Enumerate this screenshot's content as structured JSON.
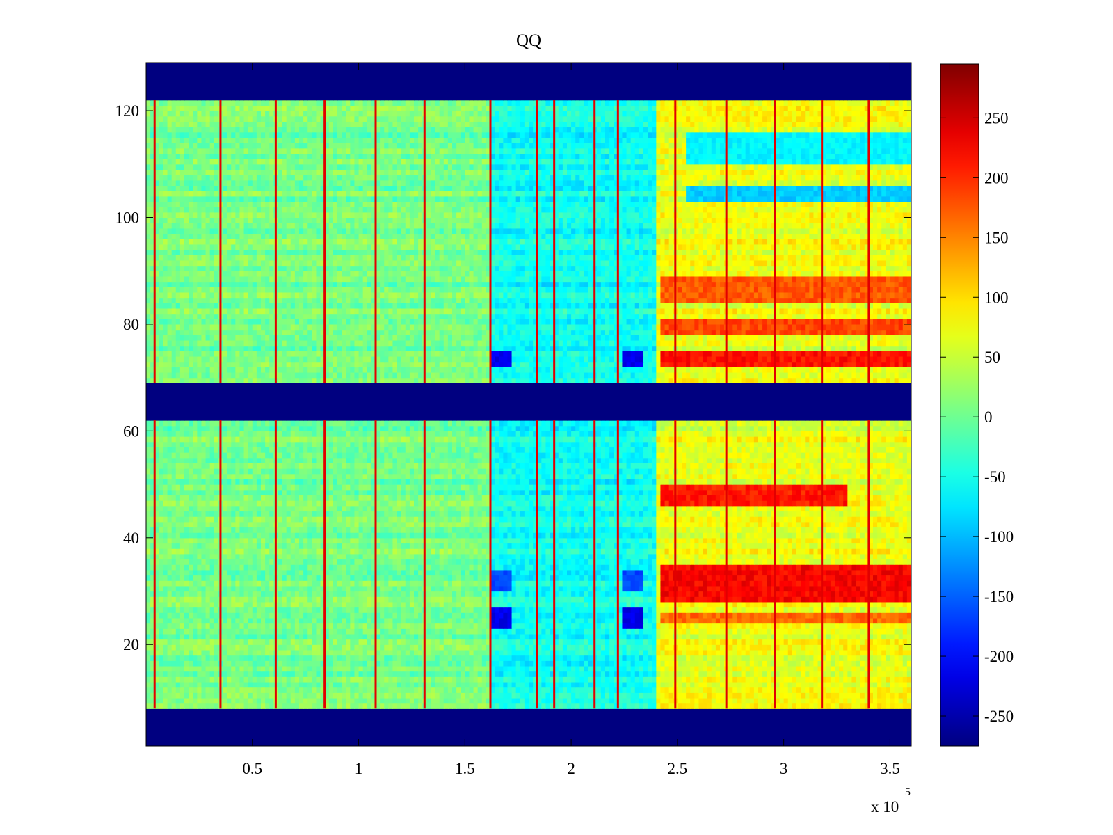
{
  "chart_data": {
    "type": "heatmap",
    "title": "QQ",
    "xlabel": "",
    "ylabel": "",
    "x_exponent_label": "x 10",
    "x_exponent_power": "5",
    "xlim": [
      0,
      3.6
    ],
    "ylim": [
      1,
      129
    ],
    "x_ticks": [
      {
        "value": 0.5,
        "label": "0.5"
      },
      {
        "value": 1,
        "label": "1"
      },
      {
        "value": 1.5,
        "label": "1.5"
      },
      {
        "value": 2,
        "label": "2"
      },
      {
        "value": 2.5,
        "label": "2.5"
      },
      {
        "value": 3,
        "label": "3"
      },
      {
        "value": 3.5,
        "label": "3.5"
      }
    ],
    "y_ticks": [
      {
        "value": 20,
        "label": "20"
      },
      {
        "value": 40,
        "label": "40"
      },
      {
        "value": 60,
        "label": "60"
      },
      {
        "value": 80,
        "label": "80"
      },
      {
        "value": 100,
        "label": "100"
      },
      {
        "value": 120,
        "label": "120"
      }
    ],
    "colorbar": {
      "colormap": "jet",
      "range": [
        -275,
        295
      ],
      "ticks": [
        {
          "value": 250,
          "label": "250"
        },
        {
          "value": 200,
          "label": "200"
        },
        {
          "value": 150,
          "label": "150"
        },
        {
          "value": 100,
          "label": "100"
        },
        {
          "value": 50,
          "label": "50"
        },
        {
          "value": 0,
          "label": "0"
        },
        {
          "value": -50,
          "label": "-50"
        },
        {
          "value": -100,
          "label": "-100"
        },
        {
          "value": -150,
          "label": "-150"
        },
        {
          "value": -200,
          "label": "-200"
        },
        {
          "value": -250,
          "label": "-250"
        }
      ]
    },
    "empty_row_bands": [
      {
        "from": 1,
        "to": 8,
        "value": -275
      },
      {
        "from": 62,
        "to": 69,
        "value": -275
      },
      {
        "from": 122,
        "to": 129,
        "value": -275
      }
    ],
    "time_regions": [
      {
        "from": 0,
        "to": 1.62,
        "mean": 5
      },
      {
        "from": 1.62,
        "to": 2.4,
        "mean": -55
      },
      {
        "from": 2.4,
        "to": 3.6,
        "mean": 70
      }
    ],
    "transient_spikes_x": [
      0.04,
      0.35,
      0.61,
      0.84,
      1.08,
      1.31,
      1.62,
      1.84,
      1.92,
      2.11,
      2.22,
      2.49,
      2.73,
      2.96,
      3.18,
      3.4
    ],
    "hot_row_bands": [
      {
        "from": 72,
        "to": 75,
        "x_from": 2.42,
        "x_to": 3.6,
        "value": 215
      },
      {
        "from": 78,
        "to": 81,
        "x_from": 2.42,
        "x_to": 3.6,
        "value": 185
      },
      {
        "from": 84,
        "to": 89,
        "x_from": 2.42,
        "x_to": 3.6,
        "value": 175
      },
      {
        "from": 46,
        "to": 50,
        "x_from": 2.42,
        "x_to": 3.3,
        "value": 210
      },
      {
        "from": 28,
        "to": 35,
        "x_from": 2.42,
        "x_to": 3.6,
        "value": 225
      },
      {
        "from": 24,
        "to": 26,
        "x_from": 2.42,
        "x_to": 3.6,
        "value": 165
      }
    ],
    "cold_row_bands": [
      {
        "from": 103,
        "to": 106,
        "x_from": 2.55,
        "x_to": 3.6,
        "value": -90
      },
      {
        "from": 110,
        "to": 116,
        "x_from": 2.55,
        "x_to": 3.6,
        "value": -65
      },
      {
        "from": 72,
        "to": 75,
        "x_from": 1.63,
        "x_to": 1.72,
        "value": -215
      },
      {
        "from": 72,
        "to": 75,
        "x_from": 2.24,
        "x_to": 2.33,
        "value": -215
      },
      {
        "from": 23,
        "to": 27,
        "x_from": 1.63,
        "x_to": 1.72,
        "value": -215
      },
      {
        "from": 23,
        "to": 27,
        "x_from": 2.24,
        "x_to": 2.33,
        "value": -215
      },
      {
        "from": 30,
        "to": 34,
        "x_from": 1.63,
        "x_to": 1.72,
        "value": -165
      },
      {
        "from": 30,
        "to": 34,
        "x_from": 2.24,
        "x_to": 2.33,
        "value": -165
      }
    ],
    "grid": false,
    "legend": "none"
  }
}
